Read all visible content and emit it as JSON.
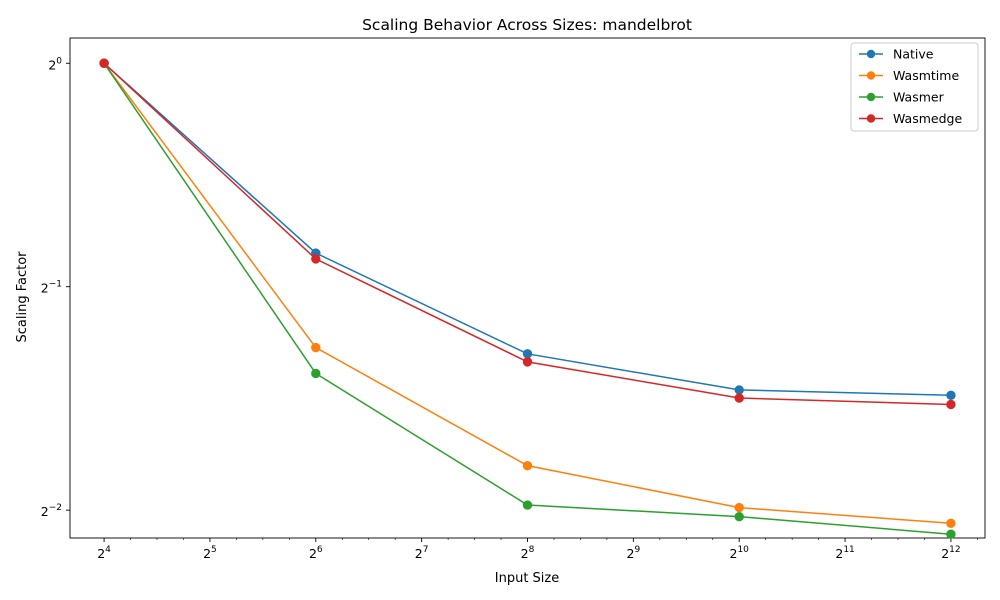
{
  "chart_data": {
    "type": "line",
    "title": "Scaling Behavior Across Sizes: mandelbrot",
    "xlabel": "Input Size",
    "ylabel": "Scaling Factor",
    "x_scale": "log2",
    "y_scale": "log2",
    "x": [
      16,
      64,
      256,
      1024,
      4096
    ],
    "xlim": [
      12.8,
      5120
    ],
    "ylim": [
      0.2293,
      1.0815
    ],
    "x_ticks": [
      {
        "base": "2",
        "exp": "4",
        "value": 16
      },
      {
        "base": "2",
        "exp": "5",
        "value": 32
      },
      {
        "base": "2",
        "exp": "6",
        "value": 64
      },
      {
        "base": "2",
        "exp": "7",
        "value": 128
      },
      {
        "base": "2",
        "exp": "8",
        "value": 256
      },
      {
        "base": "2",
        "exp": "9",
        "value": 512
      },
      {
        "base": "2",
        "exp": "10",
        "value": 1024
      },
      {
        "base": "2",
        "exp": "11",
        "value": 2048
      },
      {
        "base": "2",
        "exp": "12",
        "value": 4096
      }
    ],
    "y_ticks": [
      {
        "base": "2",
        "exp": "0",
        "value": 1
      },
      {
        "base": "2",
        "exp": "−1",
        "value": 0.5
      },
      {
        "base": "2",
        "exp": "−2",
        "value": 0.25
      }
    ],
    "grid": false,
    "legend_position": "top-right",
    "series": [
      {
        "name": "Native",
        "color": "#1f77b4",
        "values": [
          1.0,
          0.555,
          0.406,
          0.363,
          0.357
        ]
      },
      {
        "name": "Wasmtime",
        "color": "#ff7f0e",
        "values": [
          1.0,
          0.414,
          0.287,
          0.252,
          0.24
        ]
      },
      {
        "name": "Wasmer",
        "color": "#2ca02c",
        "values": [
          1.0,
          0.382,
          0.254,
          0.245,
          0.232
        ]
      },
      {
        "name": "Wasmedge",
        "color": "#d62728",
        "values": [
          1.0,
          0.545,
          0.396,
          0.354,
          0.347
        ]
      }
    ]
  }
}
